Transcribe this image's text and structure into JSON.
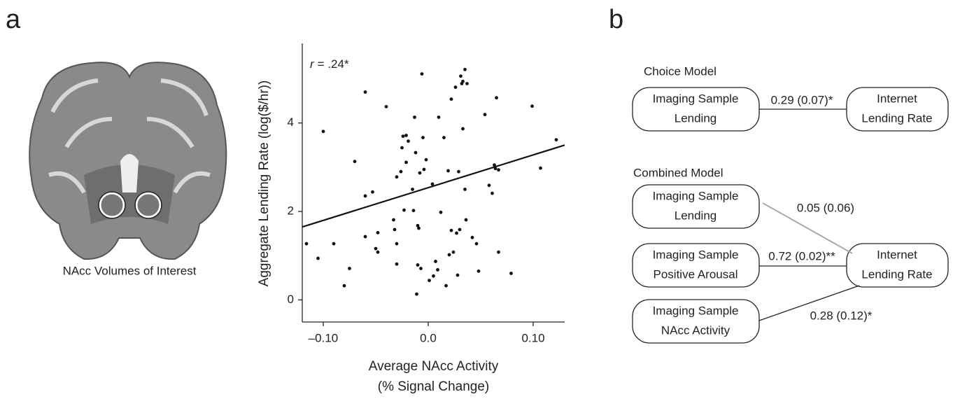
{
  "panels": [
    "a",
    "b"
  ],
  "brain_caption": "NAcc Volumes of Interest",
  "chart_data": {
    "type": "scatter",
    "xlabel": [
      "Average NAcc Activity",
      "(% Signal Change)"
    ],
    "ylabel": "Aggregate Lending Rate (log($/hr))",
    "annotation_symbol": "r",
    "annotation": "= .24*",
    "color": "#111111",
    "xlim": [
      -0.12,
      0.13
    ],
    "ylim": [
      -0.5,
      5.8
    ],
    "xticks": [
      {
        "value": -0.1,
        "label": "–0.10"
      },
      {
        "value": 0,
        "label": "0.0"
      },
      {
        "value": 0.1,
        "label": "0.10"
      }
    ],
    "yticks": [
      0,
      2,
      4
    ],
    "x": [
      -0.1,
      -0.116,
      -0.105,
      -0.09,
      -0.08,
      -0.075,
      -0.07,
      -0.06,
      -0.06,
      -0.06,
      -0.053,
      -0.05,
      -0.048,
      -0.048,
      -0.04,
      -0.033,
      -0.032,
      -0.03,
      -0.03,
      -0.03,
      -0.026,
      -0.024,
      -0.021,
      -0.025,
      -0.023,
      -0.021,
      -0.019,
      -0.015,
      -0.014,
      -0.013,
      -0.012,
      -0.011,
      -0.01,
      -0.01,
      -0.009,
      -0.008,
      -0.007,
      -0.006,
      -0.005,
      -0.004,
      -0.002,
      0.001,
      0.004,
      0.005,
      0.007,
      0.009,
      0.01,
      0.012,
      0.015,
      0.017,
      0.019,
      0.02,
      0.022,
      0.022,
      0.024,
      0.026,
      0.027,
      0.028,
      0.029,
      0.03,
      0.031,
      0.032,
      0.033,
      0.033,
      0.035,
      0.035,
      0.036,
      0.037,
      0.042,
      0.046,
      0.048,
      0.054,
      0.058,
      0.061,
      0.063,
      0.064,
      0.065,
      0.067,
      0.067,
      0.079,
      0.099,
      0.107,
      0.122
    ],
    "values": [
      3.81,
      1.27,
      0.94,
      1.27,
      0.32,
      0.71,
      3.13,
      4.7,
      1.43,
      2.35,
      2.44,
      1.16,
      1.08,
      1.52,
      4.37,
      1.81,
      1.59,
      2.78,
      1.27,
      0.81,
      2.9,
      3.7,
      3.72,
      3.44,
      2.03,
      3.11,
      3.59,
      2.5,
      2.02,
      4.13,
      3.33,
      0.13,
      0.79,
      1.68,
      1.62,
      2.87,
      0.71,
      5.11,
      3.67,
      2.95,
      3.17,
      0.44,
      2.62,
      0.54,
      0.87,
      0.68,
      4.13,
      1.98,
      3.67,
      0.32,
      2.92,
      1.02,
      4.54,
      1.57,
      1.08,
      4.81,
      1.51,
      0.56,
      2.9,
      1.59,
      5.06,
      4.89,
      3.87,
      4.94,
      5.21,
      2.5,
      1.81,
      4.89,
      1.41,
      1.27,
      0.65,
      4.19,
      2.59,
      2.41,
      3.05,
      2.97,
      4.57,
      2.94,
      1.08,
      0.6,
      4.38,
      2.98,
      3.62
    ],
    "trendline": {
      "x": [
        -0.12,
        0.13
      ],
      "values": [
        1.65,
        3.5
      ]
    }
  },
  "diagram": {
    "choice_model": {
      "title": "Choice Model",
      "source": [
        "Imaging Sample",
        "Lending"
      ],
      "target": [
        "Internet",
        "Lending Rate"
      ],
      "edge": "0.29 (0.07)*"
    },
    "combined_model": {
      "title": "Combined Model",
      "sources": [
        {
          "lines": [
            "Imaging Sample",
            "Lending"
          ],
          "edge": "0.05 (0.06)"
        },
        {
          "lines": [
            "Imaging Sample",
            "Positive Arousal"
          ],
          "edge": "0.72 (0.02)**"
        },
        {
          "lines": [
            "Imaging Sample",
            "NAcc Activity"
          ],
          "edge": "0.28 (0.12)*"
        }
      ],
      "target": [
        "Internet",
        "Lending Rate"
      ]
    }
  }
}
